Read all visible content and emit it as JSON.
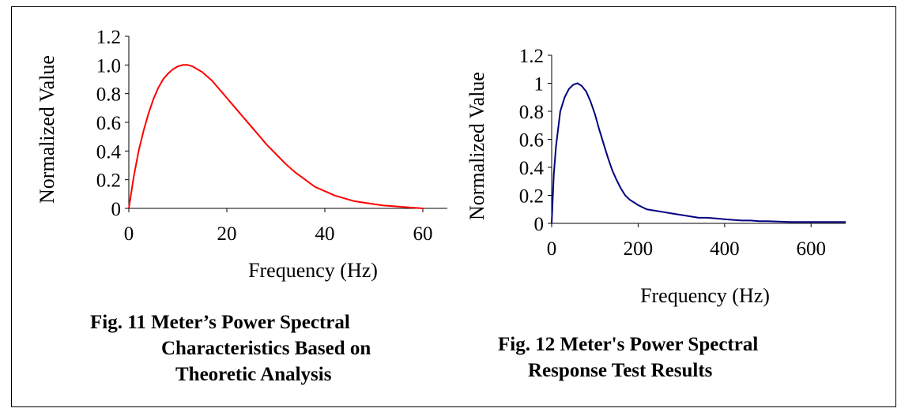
{
  "chart_data": [
    {
      "type": "line",
      "xlabel": "Frequency (Hz)",
      "ylabel": "Normalized Value",
      "xlim": [
        0,
        65
      ],
      "ylim": [
        0,
        1.2
      ],
      "xticks": [
        "0",
        "20",
        "40",
        "60"
      ],
      "yticks": [
        "0",
        "0.2",
        "0.4",
        "0.6",
        "0.8",
        "1.0",
        "1.2"
      ],
      "grid": false,
      "series": [
        {
          "color": "#ff0000",
          "x": [
            0,
            1,
            2,
            3,
            4,
            5,
            6,
            7,
            8,
            9,
            10,
            11,
            12,
            13,
            14,
            15,
            16,
            17,
            18,
            19,
            20,
            22,
            24,
            26,
            28,
            30,
            32,
            34,
            36,
            38,
            40,
            42,
            44,
            46,
            48,
            50,
            52,
            54,
            56,
            58,
            60
          ],
          "y": [
            0,
            0.22,
            0.4,
            0.54,
            0.66,
            0.76,
            0.84,
            0.9,
            0.94,
            0.97,
            0.99,
            1.0,
            1.0,
            0.99,
            0.97,
            0.95,
            0.92,
            0.89,
            0.85,
            0.81,
            0.77,
            0.69,
            0.61,
            0.53,
            0.45,
            0.38,
            0.31,
            0.25,
            0.2,
            0.15,
            0.12,
            0.09,
            0.07,
            0.05,
            0.04,
            0.03,
            0.02,
            0.015,
            0.01,
            0.005,
            0.0
          ]
        }
      ]
    },
    {
      "type": "line",
      "xlabel": "Frequency (Hz)",
      "ylabel": "Normalized Value",
      "xlim": [
        0,
        680
      ],
      "ylim": [
        0,
        1.2
      ],
      "xticks": [
        "0",
        "200",
        "400",
        "600"
      ],
      "yticks": [
        "0",
        "0.2",
        "0.4",
        "0.6",
        "0.8",
        "1",
        "1.2"
      ],
      "grid": false,
      "series": [
        {
          "color": "#000080",
          "x": [
            0,
            5,
            10,
            20,
            30,
            40,
            50,
            60,
            70,
            80,
            90,
            100,
            110,
            120,
            130,
            140,
            150,
            160,
            170,
            180,
            200,
            220,
            240,
            260,
            280,
            300,
            320,
            340,
            360,
            380,
            400,
            420,
            440,
            460,
            480,
            500,
            550,
            600,
            650,
            680
          ],
          "y": [
            0,
            0.35,
            0.55,
            0.8,
            0.9,
            0.96,
            0.99,
            1.0,
            0.98,
            0.94,
            0.87,
            0.78,
            0.67,
            0.57,
            0.47,
            0.38,
            0.31,
            0.25,
            0.2,
            0.17,
            0.13,
            0.1,
            0.09,
            0.08,
            0.07,
            0.06,
            0.05,
            0.04,
            0.04,
            0.035,
            0.03,
            0.025,
            0.02,
            0.02,
            0.015,
            0.015,
            0.01,
            0.01,
            0.01,
            0.01
          ]
        }
      ]
    }
  ],
  "captions": {
    "fig11": {
      "line1": "Fig. 11 Meter’s Power Spectral",
      "line2": "Characteristics Based on",
      "line3": "Theoretic Analysis"
    },
    "fig12": {
      "line1": "Fig. 12 Meter's Power Spectral",
      "line2": "Response Test Results"
    }
  }
}
